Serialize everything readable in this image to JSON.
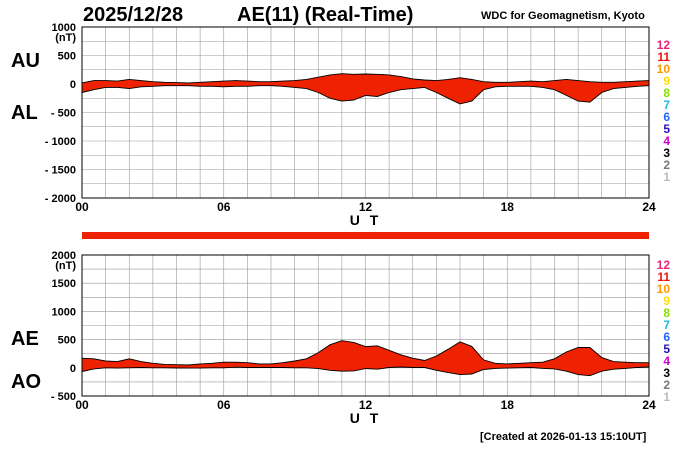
{
  "header": {
    "date": "2025/12/28",
    "title": "AE(11) (Real-Time)",
    "source": "WDC for Geomagnetism, Kyoto"
  },
  "footer": {
    "created": "[Created at 2026-01-13 15:10UT]"
  },
  "panel_top": {
    "label_upper": "AU",
    "label_lower": "AL"
  },
  "panel_bottom": {
    "label_upper": "AE",
    "label_lower": "AO"
  },
  "legend": [
    {
      "label": "12",
      "color": "#ee2277"
    },
    {
      "label": "11",
      "color": "#ee1111"
    },
    {
      "label": "10",
      "color": "#ff9900"
    },
    {
      "label": "9",
      "color": "#ffdd00"
    },
    {
      "label": "8",
      "color": "#88dd00"
    },
    {
      "label": "7",
      "color": "#22bbdd"
    },
    {
      "label": "6",
      "color": "#2266ff"
    },
    {
      "label": "5",
      "color": "#2211bb"
    },
    {
      "label": "4",
      "color": "#cc00cc"
    },
    {
      "label": "3",
      "color": "#000000"
    },
    {
      "label": "2",
      "color": "#777777"
    },
    {
      "label": "1",
      "color": "#bbbbbb"
    }
  ],
  "colors": {
    "fill": "#ee2200",
    "outline": "#000000",
    "grid": "#999999",
    "bar": "#ee2200"
  },
  "chart_data": [
    {
      "type": "area",
      "title": "AU / AL",
      "ylabel": "(nT)",
      "xlabel": "U T",
      "ylim": [
        -2000,
        1000
      ],
      "yticks": [
        1000,
        500,
        0,
        -500,
        -1000,
        -1500,
        -2000
      ],
      "ytick_labels": [
        "1000",
        "500",
        "0",
        "- 500",
        "- 1000",
        "- 1500",
        "- 2000"
      ],
      "xlim": [
        0,
        24
      ],
      "xticks": [
        0,
        6,
        12,
        18,
        24
      ],
      "xtick_labels": [
        "00",
        "06",
        "12",
        "18",
        "24"
      ],
      "grid": true,
      "x": [
        0,
        0.5,
        1,
        1.5,
        2,
        2.5,
        3,
        3.5,
        4,
        4.5,
        5,
        5.5,
        6,
        6.5,
        7,
        7.5,
        8,
        8.5,
        9,
        9.5,
        10,
        10.5,
        11,
        11.5,
        12,
        12.5,
        13,
        13.5,
        14,
        14.5,
        15,
        15.5,
        16,
        16.5,
        17,
        17.5,
        18,
        18.5,
        19,
        19.5,
        20,
        20.5,
        21,
        21.5,
        22,
        22.5,
        23,
        23.5,
        24
      ],
      "series": [
        {
          "name": "AU",
          "values": [
            20,
            60,
            60,
            50,
            80,
            60,
            40,
            30,
            25,
            20,
            30,
            40,
            50,
            60,
            50,
            40,
            40,
            50,
            60,
            80,
            120,
            160,
            180,
            170,
            175,
            170,
            160,
            130,
            90,
            70,
            60,
            80,
            110,
            80,
            40,
            30,
            30,
            40,
            50,
            40,
            60,
            80,
            60,
            40,
            30,
            30,
            40,
            50,
            60
          ]
        },
        {
          "name": "AL",
          "values": [
            -150,
            -100,
            -60,
            -60,
            -80,
            -50,
            -40,
            -30,
            -30,
            -30,
            -40,
            -40,
            -50,
            -40,
            -40,
            -30,
            -30,
            -40,
            -60,
            -80,
            -150,
            -250,
            -300,
            -280,
            -200,
            -220,
            -150,
            -100,
            -80,
            -60,
            -150,
            -250,
            -350,
            -300,
            -100,
            -50,
            -40,
            -40,
            -40,
            -60,
            -100,
            -200,
            -300,
            -320,
            -150,
            -80,
            -60,
            -40,
            -30
          ]
        }
      ]
    },
    {
      "type": "area",
      "title": "AE / AO",
      "ylabel": "(nT)",
      "xlabel": "U T",
      "ylim": [
        -500,
        2000
      ],
      "yticks": [
        2000,
        1500,
        1000,
        500,
        0,
        -500
      ],
      "ytick_labels": [
        "2000",
        "1500",
        "1000",
        "500",
        "0",
        "- 500"
      ],
      "xlim": [
        0,
        24
      ],
      "xticks": [
        0,
        6,
        12,
        18,
        24
      ],
      "xtick_labels": [
        "00",
        "06",
        "12",
        "18",
        "24"
      ],
      "grid": true,
      "x": [
        0,
        0.5,
        1,
        1.5,
        2,
        2.5,
        3,
        3.5,
        4,
        4.5,
        5,
        5.5,
        6,
        6.5,
        7,
        7.5,
        8,
        8.5,
        9,
        9.5,
        10,
        10.5,
        11,
        11.5,
        12,
        12.5,
        13,
        13.5,
        14,
        14.5,
        15,
        15.5,
        16,
        16.5,
        17,
        17.5,
        18,
        18.5,
        19,
        19.5,
        20,
        20.5,
        21,
        21.5,
        22,
        22.5,
        23,
        23.5,
        24
      ],
      "series": [
        {
          "name": "AE",
          "values": [
            170,
            160,
            120,
            110,
            160,
            110,
            80,
            60,
            55,
            50,
            70,
            80,
            100,
            100,
            90,
            70,
            70,
            90,
            120,
            160,
            270,
            410,
            480,
            450,
            375,
            390,
            310,
            230,
            170,
            130,
            210,
            330,
            460,
            380,
            140,
            80,
            70,
            80,
            90,
            100,
            160,
            280,
            360,
            360,
            180,
            110,
            100,
            90,
            90
          ]
        },
        {
          "name": "AO",
          "values": [
            -65,
            -20,
            0,
            -5,
            0,
            5,
            0,
            0,
            -3,
            -5,
            -5,
            0,
            0,
            10,
            5,
            5,
            5,
            5,
            0,
            0,
            -15,
            -45,
            -60,
            -55,
            -15,
            -25,
            5,
            15,
            5,
            5,
            -45,
            -85,
            -120,
            -110,
            -30,
            -10,
            -5,
            0,
            5,
            -10,
            -20,
            -60,
            -120,
            -140,
            -60,
            -25,
            -10,
            5,
            15
          ]
        }
      ]
    }
  ]
}
